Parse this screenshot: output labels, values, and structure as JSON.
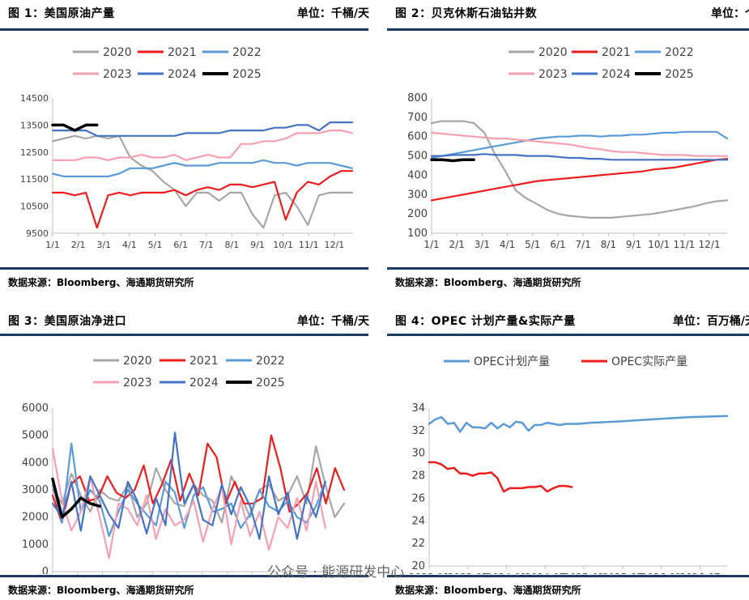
{
  "panels": [
    {
      "title": "图 1：美国原油产量",
      "unit": "单位：千桶/天",
      "source": "数据来源：Bloomberg、海通期货研究所"
    },
    {
      "title": "图 2：贝克休斯石油钻井数",
      "unit": "单位：个",
      "source": "数据来源：Bloomberg、海通期货研究所"
    },
    {
      "title": "图 3：美国原油净进口",
      "unit": "单位：千桶/天",
      "source": "数据来源：Bloomberg、海通期货研究所"
    },
    {
      "title": "图 4：OPEC 计划产量&实际产量",
      "unit": "单位：百万桶/天",
      "source": "数据来源：Bloomberg、海通期货研究所"
    }
  ],
  "watermark": "公众号 · 能源研发中心",
  "colors": {
    "2020": "#a6a6a6",
    "2021": "#ee1c1c",
    "2022": "#5b9bd5",
    "2023": "#f4a0b0",
    "2024": "#4472c4",
    "2025": "#000000",
    "plan": "#5b9bd5",
    "actual": "#ee1c1c",
    "rule": "#1f3864"
  },
  "chart_data": [
    {
      "type": "line",
      "title": "美国原油产量",
      "x_ticks": [
        "1/1",
        "2/1",
        "3/1",
        "4/1",
        "5/1",
        "6/1",
        "7/1",
        "8/1",
        "9/1",
        "10/1",
        "11/1",
        "12/1"
      ],
      "yticks": [
        "9500",
        "10500",
        "11500",
        "12500",
        "13500",
        "14500"
      ],
      "ylim": [
        9500,
        14500
      ],
      "series": [
        {
          "name": "2020",
          "color": "#a6a6a6",
          "values": [
            12900,
            13000,
            13100,
            13000,
            13100,
            13000,
            13100,
            12300,
            12000,
            11800,
            11400,
            11100,
            10500,
            11000,
            11000,
            10700,
            11000,
            11000,
            10200,
            9700,
            10900,
            11000,
            10500,
            9800,
            10900,
            11000,
            11000,
            11000
          ]
        },
        {
          "name": "2021",
          "color": "#ee1c1c",
          "values": [
            11000,
            11000,
            10900,
            11000,
            9700,
            10900,
            11000,
            10900,
            11000,
            11000,
            11000,
            11100,
            10900,
            11100,
            11200,
            11100,
            11300,
            11300,
            11200,
            11300,
            11400,
            10000,
            11000,
            11400,
            11300,
            11600,
            11800,
            11800
          ]
        },
        {
          "name": "2022",
          "color": "#5b9bd5",
          "values": [
            11700,
            11600,
            11600,
            11600,
            11600,
            11600,
            11700,
            11900,
            11900,
            11900,
            12000,
            12100,
            12000,
            12000,
            12000,
            12100,
            12100,
            12100,
            12100,
            12200,
            12100,
            12100,
            12000,
            12100,
            12100,
            12100,
            12000,
            11900
          ]
        },
        {
          "name": "2023",
          "color": "#f4a0b0",
          "values": [
            12200,
            12200,
            12200,
            12300,
            12300,
            12200,
            12300,
            12300,
            12400,
            12300,
            12300,
            12400,
            12200,
            12300,
            12400,
            12300,
            12300,
            12800,
            12800,
            12900,
            12900,
            13000,
            13200,
            13200,
            13200,
            13300,
            13300,
            13200
          ]
        },
        {
          "name": "2024",
          "color": "#4472c4",
          "values": [
            13300,
            13300,
            13300,
            13300,
            13100,
            13100,
            13100,
            13100,
            13100,
            13100,
            13100,
            13100,
            13200,
            13200,
            13200,
            13200,
            13300,
            13300,
            13300,
            13300,
            13400,
            13400,
            13500,
            13500,
            13300,
            13600,
            13600,
            13600
          ]
        },
        {
          "name": "2025",
          "color": "#000000",
          "values": [
            13500,
            13500,
            13300,
            13500,
            13500
          ]
        }
      ]
    },
    {
      "type": "line",
      "title": "贝克休斯石油钻井数",
      "x_ticks": [
        "1/1",
        "2/1",
        "3/1",
        "4/1",
        "5/1",
        "6/1",
        "7/1",
        "8/1",
        "9/1",
        "10/1",
        "11/1",
        "12/1"
      ],
      "yticks": [
        "100",
        "200",
        "300",
        "400",
        "500",
        "600",
        "700",
        "800"
      ],
      "ylim": [
        100,
        800
      ],
      "series": [
        {
          "name": "2020",
          "color": "#a6a6a6",
          "values": [
            670,
            680,
            680,
            680,
            670,
            620,
            510,
            420,
            320,
            280,
            250,
            220,
            200,
            190,
            185,
            180,
            180,
            180,
            185,
            190,
            195,
            200,
            210,
            220,
            230,
            240,
            255,
            265,
            270
          ]
        },
        {
          "name": "2021",
          "color": "#ee1c1c",
          "values": [
            270,
            280,
            290,
            300,
            310,
            320,
            330,
            340,
            350,
            360,
            370,
            375,
            380,
            385,
            390,
            395,
            400,
            405,
            410,
            415,
            420,
            430,
            435,
            440,
            450,
            460,
            470,
            480,
            485
          ]
        },
        {
          "name": "2022",
          "color": "#5b9bd5",
          "values": [
            490,
            500,
            510,
            520,
            530,
            540,
            550,
            560,
            570,
            580,
            590,
            595,
            600,
            600,
            605,
            605,
            600,
            605,
            605,
            610,
            610,
            615,
            620,
            620,
            625,
            625,
            625,
            625,
            590
          ]
        },
        {
          "name": "2023",
          "color": "#f4a0b0",
          "values": [
            620,
            615,
            610,
            605,
            600,
            595,
            590,
            590,
            585,
            580,
            575,
            570,
            565,
            560,
            550,
            540,
            535,
            525,
            520,
            520,
            515,
            510,
            505,
            505,
            505,
            500,
            500,
            500,
            500
          ]
        },
        {
          "name": "2024",
          "color": "#4472c4",
          "values": [
            500,
            500,
            505,
            505,
            505,
            510,
            505,
            505,
            505,
            500,
            500,
            500,
            495,
            490,
            490,
            485,
            485,
            480,
            480,
            480,
            480,
            480,
            480,
            480,
            480,
            480,
            480,
            480,
            480
          ]
        },
        {
          "name": "2025",
          "color": "#000000",
          "values": [
            480,
            480,
            475,
            480,
            480
          ]
        }
      ]
    },
    {
      "type": "line",
      "title": "美国原油净进口",
      "x_ticks": [
        "1/1",
        "2/1",
        "3/1",
        "4/1",
        "5/1",
        "6/1",
        "7/1",
        "8/1",
        "9/1",
        "10/1",
        "11/1",
        "12/1"
      ],
      "yticks": [
        "0",
        "1000",
        "2000",
        "3000",
        "4000",
        "5000",
        "6000"
      ],
      "ylim": [
        0,
        6000
      ],
      "series": [
        {
          "name": "2020",
          "color": "#a6a6a6",
          "values": [
            3000,
            2500,
            3600,
            2800,
            2200,
            3000,
            2700,
            2600,
            3200,
            2000,
            2500,
            3800,
            3000,
            2500,
            2400,
            3200,
            2800,
            2600,
            1800,
            3500,
            2800,
            2000,
            3000,
            3200,
            2600,
            2800,
            3500,
            2500,
            4600,
            3200,
            2000,
            2500
          ]
        },
        {
          "name": "2021",
          "color": "#ee1c1c",
          "values": [
            2800,
            1800,
            3200,
            3500,
            2600,
            2700,
            3500,
            2900,
            2700,
            3000,
            3900,
            2500,
            3200,
            4100,
            2600,
            3600,
            2800,
            4700,
            4200,
            2500,
            3300,
            2500,
            2500,
            2700,
            5000,
            3800,
            2200,
            2500,
            2900,
            3800,
            2500,
            3800,
            3000
          ]
        },
        {
          "name": "2022",
          "color": "#5b9bd5",
          "values": [
            3200,
            1800,
            4700,
            2200,
            3000,
            2600,
            1300,
            2200,
            3000,
            2500,
            2100,
            1700,
            3300,
            2900,
            1600,
            2800,
            3100,
            2200,
            2300,
            2500,
            1600,
            2100,
            3000,
            2400,
            2200,
            2600,
            2000,
            1800,
            2400,
            3300
          ]
        },
        {
          "name": "2023",
          "color": "#f4a0b0",
          "values": [
            4500,
            2600,
            1500,
            2200,
            3500,
            2000,
            500,
            2500,
            2300,
            1700,
            2800,
            1200,
            2300,
            1700,
            1900,
            2600,
            1100,
            2300,
            3100,
            1000,
            2600,
            1300,
            2200,
            800,
            2000,
            1600,
            2700,
            1500,
            3300,
            1600
          ]
        },
        {
          "name": "2024",
          "color": "#4472c4",
          "values": [
            2500,
            2000,
            3300,
            1500,
            3500,
            2800,
            2100,
            1600,
            3300,
            2600,
            1400,
            2700,
            1700,
            5100,
            2500,
            3200,
            1900,
            1700,
            3200,
            2100,
            3100,
            2400,
            1200,
            3500,
            2100,
            2900,
            1200,
            2800,
            2000,
            3300
          ]
        },
        {
          "name": "2025",
          "color": "#000000",
          "values": [
            3400,
            2000,
            2300,
            2700,
            2500,
            2400
          ]
        }
      ]
    },
    {
      "type": "line",
      "title": "OPEC计划产量&实际产量",
      "x_ticks": [
        "2023-01",
        "2023-07",
        "2024-01",
        "2024-07",
        "2025-01",
        "2025-07",
        "2026-01",
        "2026-07"
      ],
      "yticks": [
        "20",
        "22",
        "24",
        "26",
        "28",
        "30",
        "32",
        "34"
      ],
      "ylim": [
        20,
        34
      ],
      "series": [
        {
          "name": "OPEC计划产量",
          "color": "#5b9bd5",
          "x": [
            0,
            1,
            2,
            3,
            4,
            5,
            6,
            7,
            8,
            9,
            10,
            11,
            12,
            13,
            14,
            15,
            16,
            17,
            18,
            19,
            20,
            21,
            22,
            23,
            24,
            26,
            30,
            36,
            42,
            48
          ],
          "values": [
            32.6,
            33.0,
            33.2,
            32.6,
            32.7,
            31.9,
            32.7,
            32.3,
            32.3,
            32.2,
            32.7,
            32.2,
            32.6,
            32.3,
            32.8,
            32.7,
            32.0,
            32.5,
            32.5,
            32.7,
            32.6,
            32.5,
            32.6,
            32.6,
            32.6,
            32.7,
            32.8,
            33.0,
            33.2,
            33.3
          ]
        },
        {
          "name": "OPEC实际产量",
          "color": "#ee1c1c",
          "x": [
            0,
            1,
            2,
            3,
            4,
            5,
            6,
            7,
            8,
            9,
            10,
            11,
            12,
            13,
            14,
            15,
            16,
            17,
            18,
            19,
            20,
            21,
            22,
            23
          ],
          "values": [
            29.2,
            29.2,
            29.0,
            28.6,
            28.7,
            28.2,
            28.2,
            28.0,
            28.2,
            28.2,
            28.3,
            27.8,
            26.6,
            26.9,
            26.9,
            26.9,
            27.0,
            27.0,
            27.1,
            26.6,
            26.9,
            27.1,
            27.1,
            27.0
          ]
        }
      ]
    }
  ]
}
